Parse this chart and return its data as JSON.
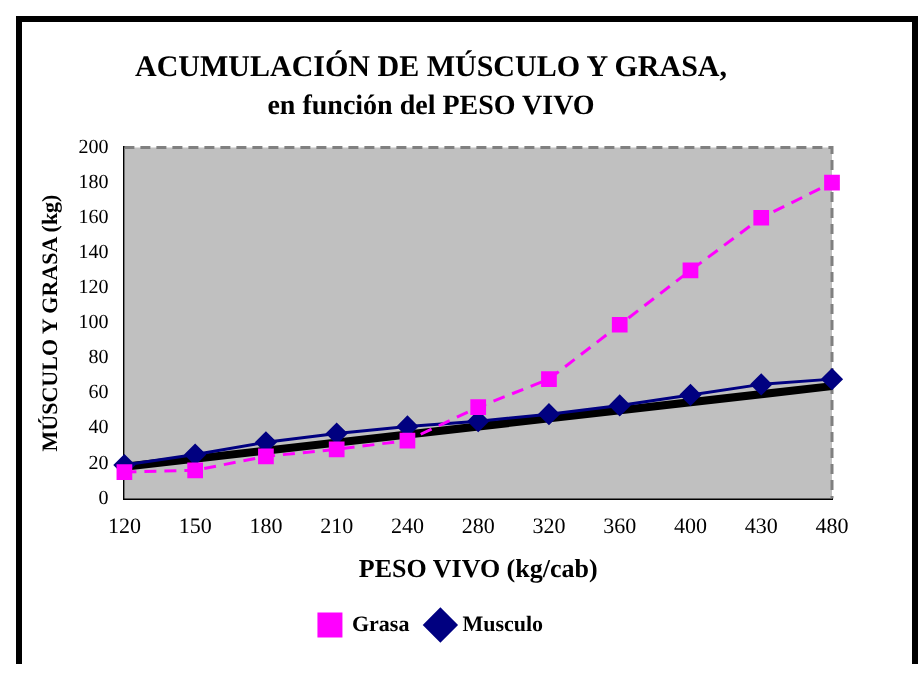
{
  "chart_data": {
    "type": "line",
    "title": "ACUMULACIÓN DE MÚSCULO Y GRASA,",
    "subtitle": "en función del PESO VIVO",
    "xlabel": "PESO VIVO (kg/cab)",
    "ylabel": "MÚSCULO Y GRASA (kg)",
    "categories": [
      "120",
      "150",
      "180",
      "210",
      "240",
      "280",
      "320",
      "360",
      "400",
      "430",
      "480"
    ],
    "series": [
      {
        "name": "Musculo",
        "color": "#000080",
        "marker": "diamond",
        "line_style": "solid",
        "values": [
          19,
          25,
          32,
          37,
          41,
          44,
          48,
          53,
          59,
          65,
          68
        ]
      },
      {
        "name": "Grasa",
        "color": "#ff00ff",
        "marker": "square",
        "line_style": "dashed",
        "values": [
          15,
          16,
          24,
          28,
          33,
          52,
          68,
          99,
          130,
          160,
          180
        ]
      },
      {
        "type": "line",
        "color": "#000000",
        "marker": "none",
        "line_style": "solid",
        "values": [
          18,
          null,
          null,
          null,
          null,
          null,
          null,
          null,
          null,
          null,
          64
        ]
      }
    ],
    "ylim": [
      0,
      200
    ],
    "yticks": [
      0,
      20,
      40,
      60,
      80,
      100,
      120,
      140,
      160,
      180,
      200
    ],
    "grid": false,
    "legend": "bottom"
  }
}
